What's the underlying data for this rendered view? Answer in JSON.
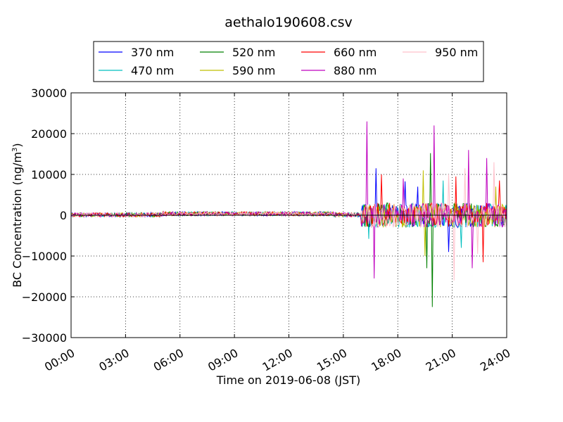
{
  "chart_data": {
    "type": "line",
    "title": "aethalo190608.csv",
    "xlabel": "Time on 2019-06-08 (JST)",
    "ylabel_main": "BC Concentration (ng/m",
    "ylabel_sup": "3",
    "ylabel_end": ")",
    "xlim": [
      "00:00",
      "24:00"
    ],
    "ylim": [
      -30000,
      30000
    ],
    "xtick_labels": [
      "00:00",
      "03:00",
      "06:00",
      "09:00",
      "12:00",
      "15:00",
      "18:00",
      "21:00",
      "24:00"
    ],
    "ytick_labels": [
      "30000",
      "20000",
      "10000",
      "0",
      "−10000",
      "−20000",
      "−30000"
    ],
    "ytick_values": [
      30000,
      20000,
      10000,
      0,
      -10000,
      -20000,
      -30000
    ],
    "grid": true,
    "legend_position": "top, above plot",
    "series": [
      {
        "name": "370 nm",
        "color": "#0000ff",
        "spikes": [
          [
            "16:48",
            11500
          ],
          [
            "18:24",
            8300
          ],
          [
            "19:06",
            7000
          ],
          [
            "20:48",
            -9000
          ]
        ]
      },
      {
        "name": "470 nm",
        "color": "#00bfbf",
        "spikes": [
          [
            "16:24",
            -5800
          ],
          [
            "18:48",
            3000
          ],
          [
            "20:30",
            8500
          ],
          [
            "21:30",
            -8000
          ]
        ]
      },
      {
        "name": "520 nm",
        "color": "#008000",
        "spikes": [
          [
            "19:48",
            15200
          ],
          [
            "19:36",
            -13000
          ],
          [
            "19:54",
            -22500
          ]
        ]
      },
      {
        "name": "590 nm",
        "color": "#bfbf00",
        "spikes": [
          [
            "19:24",
            11000
          ],
          [
            "19:30",
            -10000
          ],
          [
            "23:24",
            7000
          ]
        ]
      },
      {
        "name": "660 nm",
        "color": "#ff0000",
        "spikes": [
          [
            "17:06",
            10000
          ],
          [
            "21:12",
            9500
          ],
          [
            "22:42",
            -11500
          ],
          [
            "23:36",
            8500
          ]
        ]
      },
      {
        "name": "880 nm",
        "color": "#bf00bf",
        "spikes": [
          [
            "16:18",
            23000
          ],
          [
            "16:42",
            -15500
          ],
          [
            "18:18",
            9000
          ],
          [
            "20:00",
            22000
          ],
          [
            "21:54",
            16000
          ],
          [
            "22:06",
            -13000
          ],
          [
            "22:54",
            14000
          ]
        ]
      },
      {
        "name": "950 nm",
        "color": "#ffc0cb",
        "spikes": [
          [
            "20:48",
            10000
          ],
          [
            "21:06",
            -16000
          ],
          [
            "21:42",
            11500
          ],
          [
            "22:24",
            -9500
          ],
          [
            "23:18",
            13000
          ]
        ]
      }
    ]
  }
}
